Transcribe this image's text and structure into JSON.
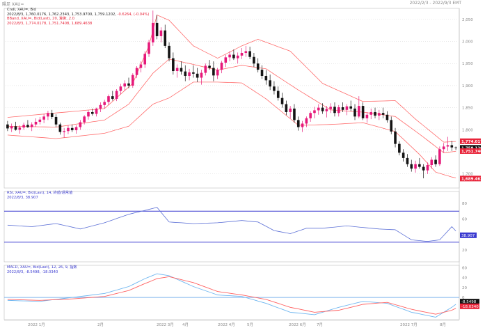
{
  "window": {
    "title": "陽足 XAU=",
    "date_range": "2022/2/3 - 2022/9/3 EMT"
  },
  "main_panel": {
    "legend": [
      {
        "text": "Cndl, XAU=, Bid",
        "color": "#222222"
      },
      {
        "text_prefix": "2022/8/3, 1,760.0176, 1,762.2343, 1,753.9700, 1,759.1202,",
        "text_suffix": "-0.6264, (-0.04%)",
        "color": "#222222",
        "suffix_color": "#e8253a"
      },
      {
        "text": "BBand, XAU=, Bid(Last), 20, 算術, 2.0",
        "color": "#e8253a"
      },
      {
        "text": "2022/8/3, 1,774.0178, 1,751.7408, 1,689.4638",
        "color": "#e8253a"
      }
    ],
    "axis_labels": [
      "2,050",
      "2,000",
      "1,950",
      "1,900",
      "1,850",
      "1,800",
      "1,750",
      "1,700"
    ],
    "tags": [
      {
        "label": "1,774.0178",
        "bg": "#e8253a",
        "value": 1774
      },
      {
        "label": "1,759.1202",
        "bg": "#111111",
        "value": 1759
      },
      {
        "label": "1,751.7408",
        "bg": "#e8253a",
        "value": 1751.7
      },
      {
        "label": "1,689.4638",
        "bg": "#e8253a",
        "value": 1689.5
      }
    ]
  },
  "rsi_panel": {
    "legend": [
      {
        "text": "RSI, XAU=, Bid(Last), 14, 終値/通常値",
        "color": "#3a3ad0"
      },
      {
        "text": "2022/8/3, 38.907",
        "color": "#3a3ad0"
      }
    ],
    "axis_labels": [
      "80",
      "60",
      "40",
      "20"
    ],
    "tags": [
      {
        "label": "38.907",
        "bg": "#3a3ad0",
        "value": 38.9
      }
    ],
    "overbought": 70,
    "oversold": 30
  },
  "macd_panel": {
    "legend": [
      {
        "text": "MACD, XAU=, Bid(Last), 12, 26, 9, 指数",
        "color": "#3a3ad0"
      },
      {
        "text": "2022/8/3, -8.5498, -18.0340",
        "color": "#3a3ad0"
      }
    ],
    "axis_labels": [
      "60",
      "40",
      "20",
      "0",
      "-20"
    ],
    "tags": [
      {
        "label": "-8.5498",
        "bg": "#111111",
        "value": -8.5
      },
      {
        "label": "-18.0340",
        "bg": "#e8253a",
        "value": -18.0
      }
    ]
  },
  "time_axis": {
    "labels": [
      "2022 1月",
      "2月",
      "2022 3月",
      "4月",
      "2022 4月",
      "5月",
      "2022 6月",
      "7月",
      "2022 7月",
      "8月"
    ]
  },
  "colors": {
    "bull": "#e6197a",
    "bear": "#141414",
    "bband": "#ff6b6b",
    "rsi": "#5b6fd6",
    "rsi_levels": "#3a3ad0",
    "macd": "#6fb6f0",
    "macd_signal": "#ff6060",
    "macd_zero": "#7fb4ee",
    "grid": "#c8c8c8"
  },
  "chart_data": {
    "type": "candlestick",
    "title": "",
    "series_name": "XAU=",
    "x_start": "2022-01-10",
    "x_end": "2022-08-03",
    "ylim": [
      1668,
      2075
    ],
    "candles_ohlc": [
      [
        1812,
        1820,
        1797,
        1803
      ],
      [
        1803,
        1814,
        1795,
        1808
      ],
      [
        1808,
        1818,
        1798,
        1800
      ],
      [
        1800,
        1810,
        1791,
        1805
      ],
      [
        1805,
        1816,
        1800,
        1811
      ],
      [
        1811,
        1822,
        1804,
        1806
      ],
      [
        1806,
        1817,
        1797,
        1812
      ],
      [
        1812,
        1826,
        1807,
        1818
      ],
      [
        1818,
        1829,
        1812,
        1823
      ],
      [
        1823,
        1836,
        1815,
        1830
      ],
      [
        1830,
        1843,
        1822,
        1838
      ],
      [
        1838,
        1845,
        1824,
        1829
      ],
      [
        1829,
        1835,
        1806,
        1812
      ],
      [
        1812,
        1816,
        1789,
        1795
      ],
      [
        1795,
        1804,
        1782,
        1797
      ],
      [
        1797,
        1810,
        1790,
        1804
      ],
      [
        1804,
        1812,
        1795,
        1799
      ],
      [
        1799,
        1810,
        1791,
        1806
      ],
      [
        1806,
        1822,
        1800,
        1817
      ],
      [
        1817,
        1833,
        1812,
        1830
      ],
      [
        1830,
        1844,
        1823,
        1840
      ],
      [
        1840,
        1848,
        1832,
        1836
      ],
      [
        1836,
        1850,
        1830,
        1848
      ],
      [
        1848,
        1862,
        1840,
        1856
      ],
      [
        1856,
        1868,
        1848,
        1863
      ],
      [
        1863,
        1880,
        1856,
        1876
      ],
      [
        1876,
        1888,
        1866,
        1870
      ],
      [
        1870,
        1892,
        1865,
        1888
      ],
      [
        1888,
        1904,
        1880,
        1898
      ],
      [
        1898,
        1912,
        1888,
        1905
      ],
      [
        1905,
        1918,
        1894,
        1900
      ],
      [
        1900,
        1928,
        1895,
        1924
      ],
      [
        1924,
        1944,
        1917,
        1940
      ],
      [
        1940,
        1955,
        1930,
        1948
      ],
      [
        1948,
        1978,
        1940,
        1972
      ],
      [
        1972,
        2004,
        1965,
        1998
      ],
      [
        1998,
        2070,
        1990,
        2042
      ],
      [
        2042,
        2060,
        2005,
        2012
      ],
      [
        2012,
        2032,
        1998,
        2025
      ],
      [
        2025,
        2038,
        1985,
        1990
      ],
      [
        1990,
        1998,
        1955,
        1962
      ],
      [
        1962,
        1975,
        1925,
        1933
      ],
      [
        1933,
        1948,
        1918,
        1940
      ],
      [
        1940,
        1955,
        1925,
        1932
      ],
      [
        1932,
        1946,
        1910,
        1922
      ],
      [
        1922,
        1938,
        1912,
        1930
      ],
      [
        1930,
        1946,
        1918,
        1927
      ],
      [
        1927,
        1940,
        1908,
        1918
      ],
      [
        1918,
        1936,
        1902,
        1929
      ],
      [
        1929,
        1950,
        1923,
        1945
      ],
      [
        1945,
        1958,
        1936,
        1940
      ],
      [
        1940,
        1955,
        1910,
        1923
      ],
      [
        1923,
        1940,
        1915,
        1936
      ],
      [
        1936,
        1956,
        1928,
        1952
      ],
      [
        1952,
        1970,
        1942,
        1964
      ],
      [
        1964,
        1978,
        1955,
        1970
      ],
      [
        1970,
        1982,
        1958,
        1962
      ],
      [
        1962,
        1975,
        1950,
        1968
      ],
      [
        1968,
        1985,
        1960,
        1974
      ],
      [
        1974,
        1990,
        1965,
        1978
      ],
      [
        1978,
        1988,
        1960,
        1965
      ],
      [
        1965,
        1974,
        1942,
        1950
      ],
      [
        1950,
        1962,
        1930,
        1936
      ],
      [
        1936,
        1946,
        1915,
        1922
      ],
      [
        1922,
        1935,
        1902,
        1912
      ],
      [
        1912,
        1925,
        1890,
        1898
      ],
      [
        1898,
        1910,
        1880,
        1888
      ],
      [
        1888,
        1898,
        1866,
        1872
      ],
      [
        1872,
        1884,
        1850,
        1858
      ],
      [
        1858,
        1866,
        1833,
        1840
      ],
      [
        1840,
        1854,
        1826,
        1848
      ],
      [
        1848,
        1858,
        1816,
        1822
      ],
      [
        1822,
        1830,
        1798,
        1806
      ],
      [
        1806,
        1820,
        1795,
        1814
      ],
      [
        1814,
        1830,
        1806,
        1826
      ],
      [
        1826,
        1842,
        1818,
        1838
      ],
      [
        1838,
        1852,
        1826,
        1844
      ],
      [
        1844,
        1858,
        1834,
        1850
      ],
      [
        1850,
        1860,
        1836,
        1842
      ],
      [
        1842,
        1854,
        1828,
        1847
      ],
      [
        1847,
        1860,
        1838,
        1852
      ],
      [
        1852,
        1862,
        1830,
        1838
      ],
      [
        1838,
        1856,
        1830,
        1851
      ],
      [
        1851,
        1862,
        1840,
        1845
      ],
      [
        1845,
        1858,
        1833,
        1853
      ],
      [
        1853,
        1866,
        1842,
        1848
      ],
      [
        1848,
        1858,
        1822,
        1830
      ],
      [
        1830,
        1876,
        1826,
        1854
      ],
      [
        1854,
        1862,
        1822,
        1826
      ],
      [
        1826,
        1840,
        1816,
        1834
      ],
      [
        1834,
        1848,
        1824,
        1840
      ],
      [
        1840,
        1850,
        1826,
        1832
      ],
      [
        1832,
        1845,
        1822,
        1838
      ],
      [
        1838,
        1850,
        1826,
        1834
      ],
      [
        1834,
        1842,
        1816,
        1822
      ],
      [
        1822,
        1830,
        1790,
        1796
      ],
      [
        1796,
        1804,
        1760,
        1768
      ],
      [
        1768,
        1774,
        1742,
        1748
      ],
      [
        1748,
        1756,
        1728,
        1736
      ],
      [
        1736,
        1745,
        1716,
        1722
      ],
      [
        1722,
        1732,
        1705,
        1712
      ],
      [
        1712,
        1730,
        1703,
        1722
      ],
      [
        1722,
        1736,
        1712,
        1716
      ],
      [
        1716,
        1722,
        1690,
        1708
      ],
      [
        1708,
        1726,
        1700,
        1720
      ],
      [
        1720,
        1738,
        1712,
        1732
      ],
      [
        1732,
        1742,
        1716,
        1722
      ],
      [
        1722,
        1762,
        1718,
        1756
      ],
      [
        1756,
        1770,
        1748,
        1762
      ],
      [
        1762,
        1784,
        1752,
        1765
      ],
      [
        1765,
        1775,
        1752,
        1760
      ],
      [
        1760,
        1762,
        1754,
        1759
      ]
    ],
    "bollinger": {
      "period": 20,
      "std": 2.0,
      "upper_anchors": [
        [
          0,
          1828
        ],
        [
          12,
          1838
        ],
        [
          24,
          1848
        ],
        [
          31,
          1905
        ],
        [
          35,
          1990
        ],
        [
          37,
          2060
        ],
        [
          40,
          2048
        ],
        [
          46,
          1990
        ],
        [
          52,
          1962
        ],
        [
          58,
          1990
        ],
        [
          62,
          2005
        ],
        [
          70,
          1978
        ],
        [
          78,
          1905
        ],
        [
          88,
          1864
        ],
        [
          96,
          1866
        ],
        [
          101,
          1824
        ],
        [
          108,
          1772
        ],
        [
          112,
          1774
        ]
      ],
      "middle_anchors": [
        [
          0,
          1808
        ],
        [
          12,
          1806
        ],
        [
          24,
          1822
        ],
        [
          30,
          1858
        ],
        [
          36,
          1928
        ],
        [
          40,
          1960
        ],
        [
          46,
          1948
        ],
        [
          52,
          1935
        ],
        [
          58,
          1946
        ],
        [
          64,
          1938
        ],
        [
          72,
          1890
        ],
        [
          80,
          1845
        ],
        [
          88,
          1840
        ],
        [
          96,
          1830
        ],
        [
          102,
          1790
        ],
        [
          108,
          1748
        ],
        [
          112,
          1752
        ]
      ],
      "lower_anchors": [
        [
          0,
          1788
        ],
        [
          12,
          1780
        ],
        [
          24,
          1792
        ],
        [
          30,
          1808
        ],
        [
          36,
          1858
        ],
        [
          40,
          1872
        ],
        [
          46,
          1908
        ],
        [
          52,
          1908
        ],
        [
          58,
          1906
        ],
        [
          64,
          1870
        ],
        [
          72,
          1810
        ],
        [
          80,
          1812
        ],
        [
          88,
          1816
        ],
        [
          96,
          1796
        ],
        [
          102,
          1744
        ],
        [
          106,
          1704
        ],
        [
          110,
          1693
        ],
        [
          112,
          1689
        ]
      ]
    },
    "rsi_anchors": [
      [
        0,
        52
      ],
      [
        6,
        50
      ],
      [
        12,
        54
      ],
      [
        18,
        47
      ],
      [
        24,
        55
      ],
      [
        30,
        66
      ],
      [
        34,
        71
      ],
      [
        37,
        75
      ],
      [
        40,
        56
      ],
      [
        46,
        54
      ],
      [
        52,
        55
      ],
      [
        58,
        58
      ],
      [
        62,
        56
      ],
      [
        66,
        45
      ],
      [
        70,
        41
      ],
      [
        74,
        48
      ],
      [
        78,
        48
      ],
      [
        84,
        51
      ],
      [
        88,
        49
      ],
      [
        92,
        47
      ],
      [
        96,
        46
      ],
      [
        100,
        33
      ],
      [
        104,
        31
      ],
      [
        107,
        33
      ],
      [
        110,
        50
      ],
      [
        112,
        39
      ]
    ],
    "macd": {
      "fast": 12,
      "slow": 26,
      "signal": 9,
      "ylim": [
        -45,
        65
      ],
      "macd_anchors": [
        [
          0,
          -6
        ],
        [
          8,
          -8
        ],
        [
          16,
          0
        ],
        [
          24,
          8
        ],
        [
          30,
          22
        ],
        [
          34,
          38
        ],
        [
          37,
          48
        ],
        [
          40,
          44
        ],
        [
          46,
          22
        ],
        [
          52,
          5
        ],
        [
          58,
          2
        ],
        [
          64,
          -12
        ],
        [
          70,
          -30
        ],
        [
          76,
          -35
        ],
        [
          82,
          -20
        ],
        [
          88,
          -8
        ],
        [
          94,
          -12
        ],
        [
          100,
          -30
        ],
        [
          106,
          -40
        ],
        [
          110,
          -20
        ],
        [
          112,
          -8
        ]
      ],
      "signal_anchors": [
        [
          0,
          -4
        ],
        [
          8,
          -6
        ],
        [
          16,
          -3
        ],
        [
          24,
          2
        ],
        [
          30,
          14
        ],
        [
          34,
          28
        ],
        [
          37,
          38
        ],
        [
          40,
          42
        ],
        [
          46,
          30
        ],
        [
          52,
          12
        ],
        [
          58,
          5
        ],
        [
          64,
          -4
        ],
        [
          70,
          -20
        ],
        [
          76,
          -30
        ],
        [
          82,
          -26
        ],
        [
          88,
          -14
        ],
        [
          94,
          -10
        ],
        [
          100,
          -24
        ],
        [
          106,
          -34
        ],
        [
          110,
          -26
        ],
        [
          112,
          -18
        ]
      ]
    }
  }
}
